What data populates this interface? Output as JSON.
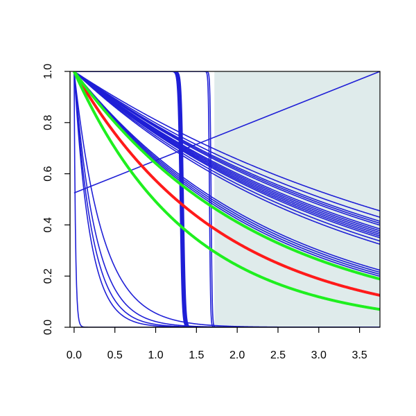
{
  "chart_data": {
    "type": "line",
    "title": "",
    "xlabel": "",
    "ylabel": "",
    "xlim": [
      -0.05,
      3.75
    ],
    "ylim": [
      0.0,
      1.0
    ],
    "x_ticks": [
      "0.0",
      "0.5",
      "1.0",
      "1.5",
      "2.0",
      "2.5",
      "3.0",
      "3.5"
    ],
    "y_ticks": [
      "0.0",
      "0.2",
      "0.4",
      "0.6",
      "0.8",
      "1.0"
    ],
    "grid": false,
    "legend": "none",
    "shaded_region": {
      "x": [
        1.72,
        3.75
      ],
      "color": "#dfebeb"
    },
    "colors": {
      "blue": "#1f1fd6",
      "red": "#ff1a1a",
      "green": "#1fef1f"
    },
    "series": [
      {
        "color": "blue",
        "kind": "exp",
        "rates": [
          0.21,
          0.225,
          0.235,
          0.24,
          0.245,
          0.255,
          0.26,
          0.265,
          0.27,
          0.275,
          0.28,
          0.29,
          0.3
        ]
      },
      {
        "color": "blue",
        "kind": "exp",
        "rates": [
          0.4,
          0.41,
          0.42,
          0.43
        ]
      },
      {
        "color": "blue",
        "kind": "exp",
        "rates": [
          2.9,
          3.8,
          4.5,
          5.2
        ]
      },
      {
        "color": "blue",
        "kind": "exp",
        "rates": [
          60
        ]
      },
      {
        "color": "blue",
        "kind": "step",
        "x": [
          1.3,
          1.31,
          1.32,
          1.33,
          1.34
        ],
        "steepness": 80
      },
      {
        "color": "blue",
        "kind": "step",
        "x": [
          1.66,
          1.68
        ],
        "steepness": 150
      },
      {
        "color": "blue",
        "kind": "linear",
        "points": [
          [
            0,
            0.525
          ],
          [
            3.75,
            1.0
          ]
        ]
      },
      {
        "color": "red",
        "kind": "exp",
        "rates": [
          0.555
        ],
        "width": 4
      },
      {
        "color": "green",
        "kind": "exp",
        "rates": [
          0.445,
          0.71
        ],
        "width": 4
      }
    ]
  }
}
